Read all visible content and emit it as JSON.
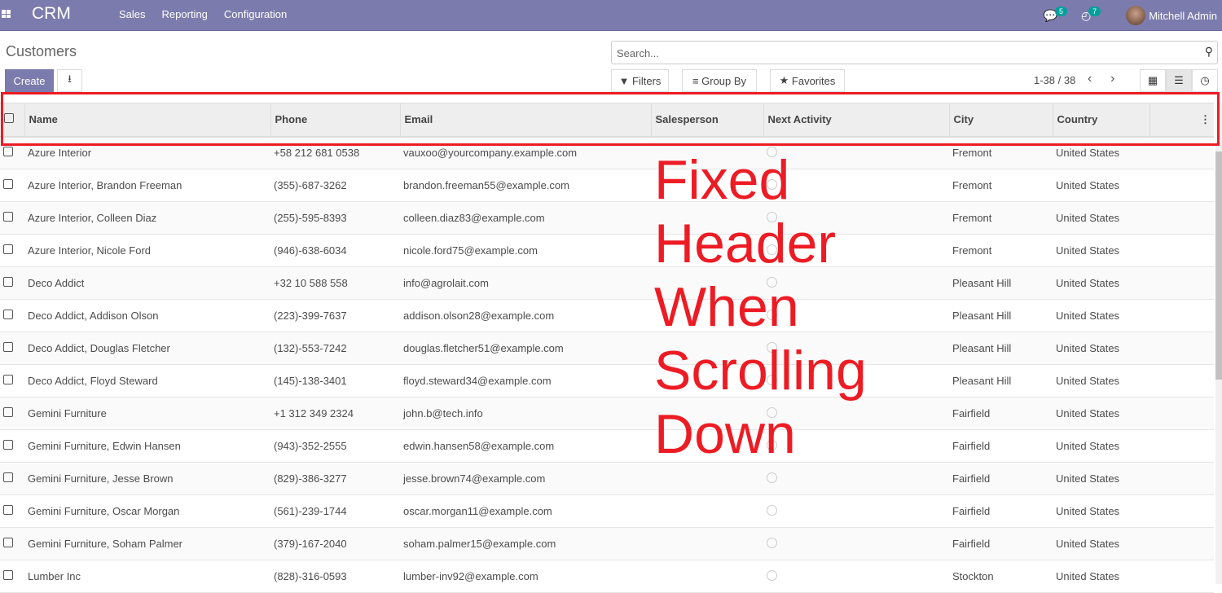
{
  "app": {
    "name": "CRM",
    "menu": [
      "Sales",
      "Reporting",
      "Configuration"
    ],
    "messages_count": "5",
    "activities_count": "7",
    "user": "Mitchell Admin"
  },
  "page": {
    "title": "Customers",
    "create_label": "Create",
    "search_placeholder": "Search...",
    "filters_label": "Filters",
    "groupby_label": "Group By",
    "favorites_label": "Favorites",
    "pager": "1-38 / 38"
  },
  "columns": [
    "Name",
    "Phone",
    "Email",
    "Salesperson",
    "Next Activity",
    "City",
    "Country"
  ],
  "rows": [
    [
      "Azure Interior",
      "+58 212 681 0538",
      "vauxoo@yourcompany.example.com",
      "",
      "",
      "Fremont",
      "United States"
    ],
    [
      "Azure Interior, Brandon Freeman",
      "(355)-687-3262",
      "brandon.freeman55@example.com",
      "",
      "",
      "Fremont",
      "United States"
    ],
    [
      "Azure Interior, Colleen Diaz",
      "(255)-595-8393",
      "colleen.diaz83@example.com",
      "",
      "",
      "Fremont",
      "United States"
    ],
    [
      "Azure Interior, Nicole Ford",
      "(946)-638-6034",
      "nicole.ford75@example.com",
      "",
      "",
      "Fremont",
      "United States"
    ],
    [
      "Deco Addict",
      "+32 10 588 558",
      "info@agrolait.com",
      "",
      "",
      "Pleasant Hill",
      "United States"
    ],
    [
      "Deco Addict, Addison Olson",
      "(223)-399-7637",
      "addison.olson28@example.com",
      "",
      "",
      "Pleasant Hill",
      "United States"
    ],
    [
      "Deco Addict, Douglas Fletcher",
      "(132)-553-7242",
      "douglas.fletcher51@example.com",
      "",
      "",
      "Pleasant Hill",
      "United States"
    ],
    [
      "Deco Addict, Floyd Steward",
      "(145)-138-3401",
      "floyd.steward34@example.com",
      "",
      "",
      "Pleasant Hill",
      "United States"
    ],
    [
      "Gemini Furniture",
      "+1 312 349 2324",
      "john.b@tech.info",
      "",
      "",
      "Fairfield",
      "United States"
    ],
    [
      "Gemini Furniture, Edwin Hansen",
      "(943)-352-2555",
      "edwin.hansen58@example.com",
      "",
      "",
      "Fairfield",
      "United States"
    ],
    [
      "Gemini Furniture, Jesse Brown",
      "(829)-386-3277",
      "jesse.brown74@example.com",
      "",
      "",
      "Fairfield",
      "United States"
    ],
    [
      "Gemini Furniture, Oscar Morgan",
      "(561)-239-1744",
      "oscar.morgan11@example.com",
      "",
      "",
      "Fairfield",
      "United States"
    ],
    [
      "Gemini Furniture, Soham Palmer",
      "(379)-167-2040",
      "soham.palmer15@example.com",
      "",
      "",
      "Fairfield",
      "United States"
    ],
    [
      "Lumber Inc",
      "(828)-316-0593",
      "lumber-inv92@example.com",
      "",
      "",
      "Stockton",
      "United States"
    ]
  ],
  "annotation": "Fixed Header\nWhen Scrolling\nDown",
  "colors": {
    "navbar": "#7c7bad",
    "badge": "#00a09d",
    "annotation": "#ed1c24"
  }
}
